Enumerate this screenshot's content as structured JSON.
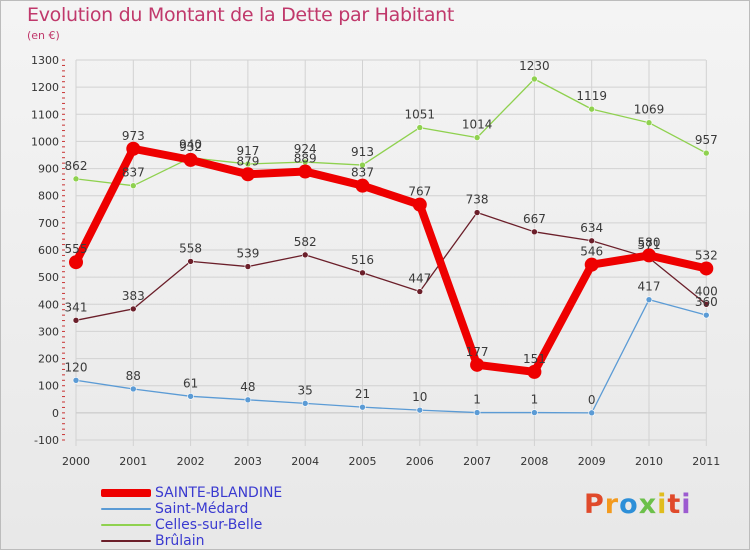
{
  "title": "Evolution du Montant de la Dette par Habitant",
  "unit": "(en €)",
  "logo": {
    "letters": [
      "P",
      "r",
      "o",
      "x",
      "i",
      "t",
      "i"
    ],
    "colors": [
      "#e04a2b",
      "#f39a1e",
      "#2d8fd8",
      "#6cc04a",
      "#e0bd1e",
      "#e04a2b",
      "#9c5bd0"
    ]
  },
  "chart_data": {
    "type": "line",
    "x": [
      "2000",
      "2001",
      "2002",
      "2003",
      "2004",
      "2005",
      "2006",
      "2007",
      "2008",
      "2009",
      "2010",
      "2011"
    ],
    "ylim": [
      -100,
      1300
    ],
    "yticks": [
      "-100",
      "0",
      "100",
      "200",
      "300",
      "400",
      "500",
      "600",
      "700",
      "800",
      "900",
      "1000",
      "1100",
      "1200",
      "1300"
    ],
    "grid": true,
    "legend_position": "bottom-left",
    "series": [
      {
        "name": "SAINTE-BLANDINE",
        "color": "#ee0000",
        "values": [
          555,
          973,
          932,
          879,
          889,
          837,
          767,
          177,
          151,
          546,
          580,
          532
        ],
        "labels": [
          "555",
          "973",
          "932",
          "879",
          "889",
          "837",
          "767",
          "177",
          "151",
          "546",
          "580",
          "532"
        ]
      },
      {
        "name": "Saint-Médard",
        "color": "#5b9bd5",
        "values": [
          120,
          88,
          61,
          48,
          35,
          21,
          10,
          1,
          1,
          0,
          417,
          360
        ],
        "labels": [
          "120",
          "88",
          "61",
          "48",
          "35",
          "21",
          "10",
          "1",
          "1",
          "0",
          "417",
          "360"
        ]
      },
      {
        "name": "Celles-sur-Belle",
        "color": "#8fd14f",
        "values": [
          862,
          837,
          940,
          917,
          924,
          913,
          1051,
          1014,
          1230,
          1119,
          1069,
          957
        ],
        "labels": [
          "862",
          "837",
          "940",
          "917",
          "924",
          "913",
          "1051",
          "1014",
          "1230",
          "1119",
          "1069",
          "957"
        ]
      },
      {
        "name": "Brûlain",
        "color": "#6b1f2a",
        "values": [
          341,
          383,
          558,
          539,
          582,
          516,
          447,
          738,
          667,
          634,
          571,
          400
        ],
        "labels": [
          "341",
          "383",
          "558",
          "539",
          "582",
          "516",
          "447",
          "738",
          "667",
          "634",
          "571",
          "400"
        ]
      }
    ]
  }
}
